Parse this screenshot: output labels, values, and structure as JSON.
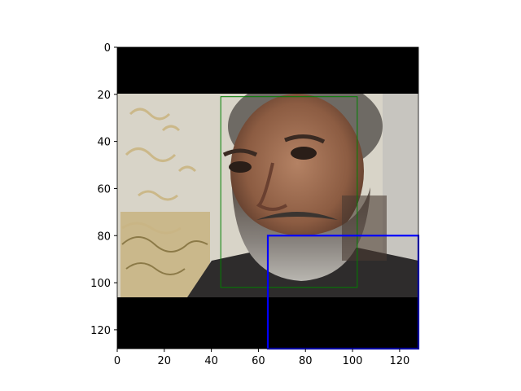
{
  "chart_data": {
    "type": "image",
    "title": "",
    "xlabel": "",
    "ylabel": "",
    "xlim": [
      0,
      128
    ],
    "ylim": [
      128,
      0
    ],
    "y_inverted": true,
    "grid": false,
    "x_ticks": [
      0,
      20,
      40,
      60,
      80,
      100,
      120
    ],
    "y_ticks": [
      0,
      20,
      40,
      60,
      80,
      100,
      120
    ],
    "image": {
      "content": "face photo of a bearded man with grey hair, patterned wallpaper background",
      "padding_color": "#000000",
      "photo_rows": [
        20,
        106
      ]
    },
    "boxes": [
      {
        "label": "",
        "color": "#008000",
        "x0": 44,
        "y0": 21,
        "x1": 102,
        "y1": 102
      },
      {
        "label": "",
        "color": "#0000ff",
        "x0": 64,
        "y0": 80,
        "x1": 128,
        "y1": 128
      }
    ]
  }
}
